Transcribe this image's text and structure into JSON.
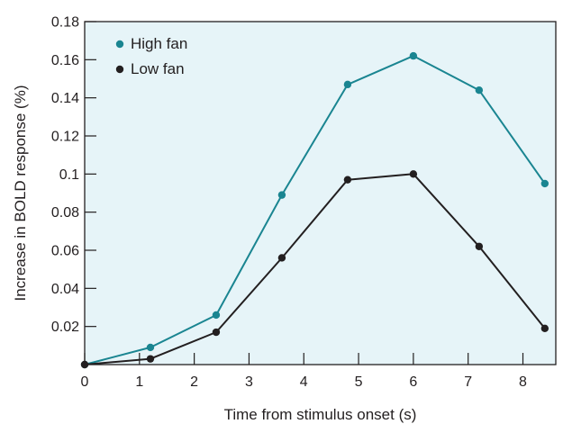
{
  "chart_data": {
    "type": "line",
    "xlabel": "Time from stimulus onset (s)",
    "ylabel": "Increase in BOLD response (%)",
    "xlim": [
      0,
      8.6
    ],
    "ylim": [
      0,
      0.18
    ],
    "xticks": [
      0,
      1,
      2,
      3,
      4,
      5,
      6,
      7,
      8
    ],
    "xtick_labels": [
      "0",
      "1",
      "2",
      "3",
      "4",
      "5",
      "6",
      "7",
      "8"
    ],
    "yticks": [
      0.02,
      0.04,
      0.06,
      0.08,
      0.1,
      0.12,
      0.14,
      0.16,
      0.18
    ],
    "ytick_labels": [
      "0.02",
      "0.04",
      "0.06",
      "0.08",
      "0.1",
      "0.12",
      "0.14",
      "0.16",
      "0.18"
    ],
    "grid": false,
    "legend_position": "top-left",
    "background_color": "#e6f4f8",
    "series": [
      {
        "name": "High fan",
        "color": "#1a8591",
        "x": [
          0,
          1.2,
          2.4,
          3.6,
          4.8,
          6.0,
          7.2,
          8.4
        ],
        "y": [
          0.0,
          0.009,
          0.026,
          0.089,
          0.147,
          0.162,
          0.144,
          0.095
        ]
      },
      {
        "name": "Low fan",
        "color": "#231f20",
        "x": [
          0,
          1.2,
          2.4,
          3.6,
          4.8,
          6.0,
          7.2,
          8.4
        ],
        "y": [
          0.0,
          0.003,
          0.017,
          0.056,
          0.097,
          0.1,
          0.062,
          0.019
        ]
      }
    ]
  }
}
